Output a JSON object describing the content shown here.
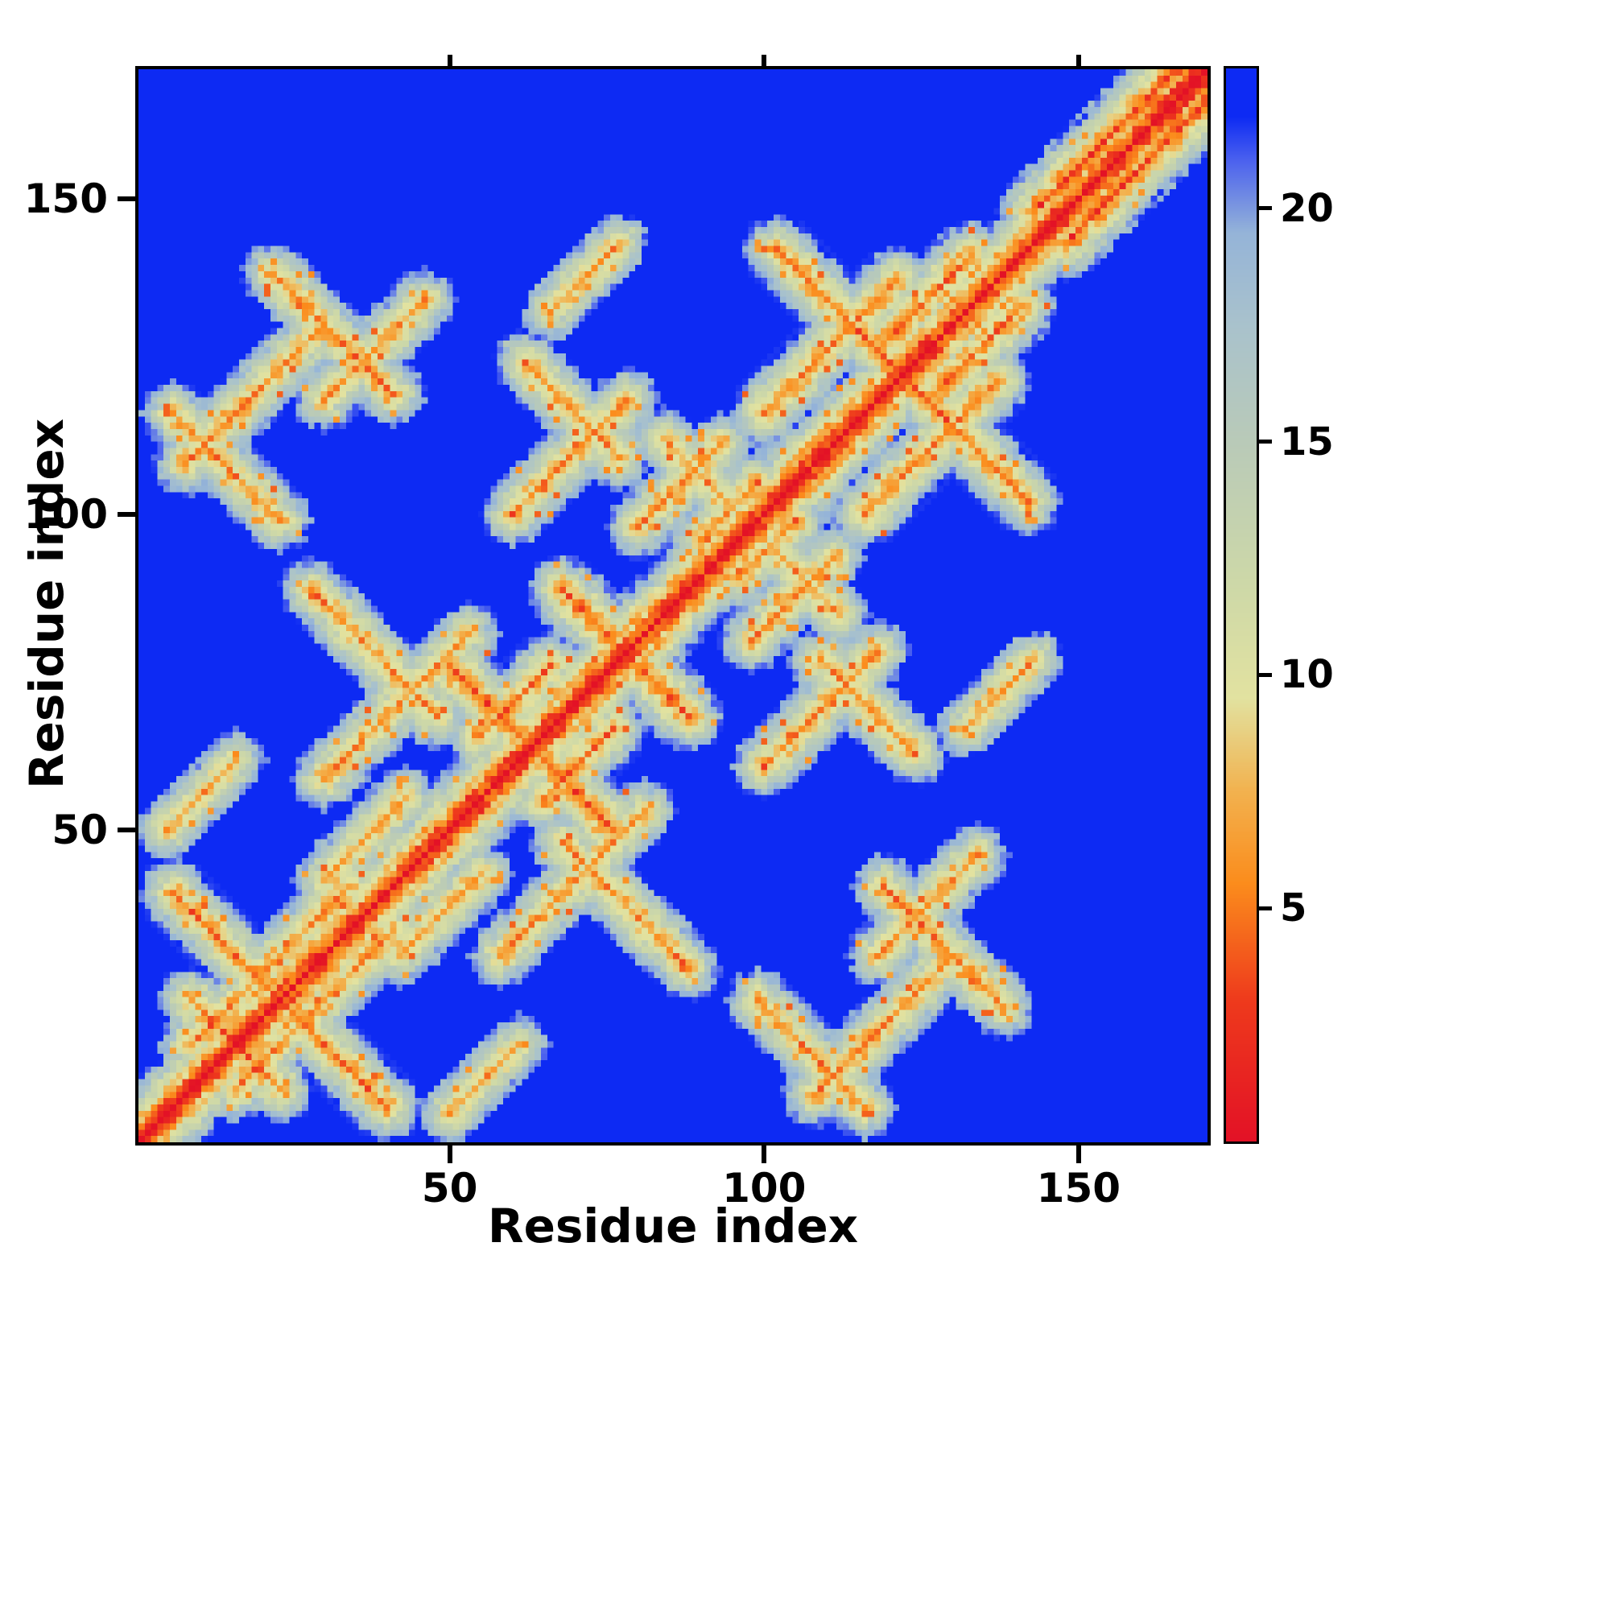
{
  "chart_data": {
    "type": "heatmap",
    "title": "",
    "xlabel": "Residue index",
    "ylabel": "Residue index",
    "n_residues": 170,
    "axis_range": [
      1,
      170
    ],
    "x_ticks": [
      50,
      100,
      150
    ],
    "y_ticks": [
      50,
      100,
      150
    ],
    "grid": false,
    "legend_position": "none",
    "colorbar": {
      "ticks": [
        5,
        10,
        15,
        20
      ],
      "vmin": 0,
      "vmax": 23,
      "position": "right"
    },
    "background_value": 23,
    "halo_step": 3.0,
    "noise_amplitude": 1.8,
    "block_noise_amplitude": 1.2,
    "speckles": {
      "orange_prob": 0.055,
      "red_prob": 0.012
    },
    "diagonal": {
      "core_value": 0
    },
    "colormap_stops": [
      {
        "v": 0,
        "color": "#e31226"
      },
      {
        "v": 3,
        "color": "#ee3a1c"
      },
      {
        "v": 5.5,
        "color": "#fb8c1c"
      },
      {
        "v": 7.5,
        "color": "#f2b24f"
      },
      {
        "v": 9.5,
        "color": "#e2e2a0"
      },
      {
        "v": 12,
        "color": "#cdd8a8"
      },
      {
        "v": 15,
        "color": "#b9cab8"
      },
      {
        "v": 17.5,
        "color": "#a9c2cc"
      },
      {
        "v": 19.5,
        "color": "#95b4d8"
      },
      {
        "v": 21,
        "color": "#4e64ee"
      },
      {
        "v": 22,
        "color": "#0d2af3"
      },
      {
        "v": 23,
        "color": "#0d2af3"
      }
    ],
    "contact_segments": [
      {
        "i": 6,
        "j": 40,
        "len": 31,
        "dir": -1,
        "core": 5.0
      },
      {
        "i": 9,
        "j": 16,
        "len": 26,
        "dir": 1,
        "core": 5.5
      },
      {
        "i": 12,
        "j": 20,
        "len": 12,
        "dir": -1,
        "core": 5.0
      },
      {
        "i": 30,
        "j": 42,
        "len": 14,
        "dir": 1,
        "core": 6.0
      },
      {
        "i": 5,
        "j": 50,
        "len": 12,
        "dir": 1,
        "core": 6.5
      },
      {
        "i": 28,
        "j": 88,
        "len": 21,
        "dir": -1,
        "core": 5.5
      },
      {
        "i": 30,
        "j": 58,
        "len": 24,
        "dir": 1,
        "core": 6.0
      },
      {
        "i": 50,
        "j": 76,
        "len": 25,
        "dir": -1,
        "core": 4.0
      },
      {
        "i": 68,
        "j": 88,
        "len": 18,
        "dir": -1,
        "core": 4.0
      },
      {
        "i": 55,
        "j": 65,
        "len": 12,
        "dir": 1,
        "core": 5.0
      },
      {
        "i": 60,
        "j": 100,
        "len": 19,
        "dir": 1,
        "core": 5.5
      },
      {
        "i": 62,
        "j": 124,
        "len": 16,
        "dir": -1,
        "core": 5.5
      },
      {
        "i": 66,
        "j": 132,
        "len": 12,
        "dir": 1,
        "core": 6.5
      },
      {
        "i": 80,
        "j": 98,
        "len": 14,
        "dir": 1,
        "core": 5.5
      },
      {
        "i": 84,
        "j": 112,
        "len": 13,
        "dir": -1,
        "core": 6.0
      },
      {
        "i": 90,
        "j": 96,
        "len": 10,
        "dir": 1,
        "core": 5.5
      },
      {
        "i": 8,
        "j": 108,
        "len": 23,
        "dir": 1,
        "core": 5.5
      },
      {
        "i": 6,
        "j": 116,
        "len": 18,
        "dir": -1,
        "core": 6.0
      },
      {
        "i": 22,
        "j": 138,
        "len": 20,
        "dir": -1,
        "core": 5.5
      },
      {
        "i": 30,
        "j": 118,
        "len": 17,
        "dir": 1,
        "core": 6.0
      },
      {
        "i": 100,
        "j": 116,
        "len": 22,
        "dir": 1,
        "core": 5.0
      },
      {
        "i": 102,
        "j": 142,
        "len": 35,
        "dir": -1,
        "core": 5.0
      },
      {
        "i": 118,
        "j": 126,
        "len": 16,
        "dir": 1,
        "core": 4.5
      },
      {
        "i": 143,
        "j": 148,
        "len": 26,
        "dir": 1,
        "core": 3.5
      }
    ]
  },
  "figure": {
    "background": "#ffffff",
    "frame_color": "#000000",
    "text_color": "#000000",
    "heat_background_color": "#0d2af3",
    "diagonal_color": "#e31226"
  }
}
